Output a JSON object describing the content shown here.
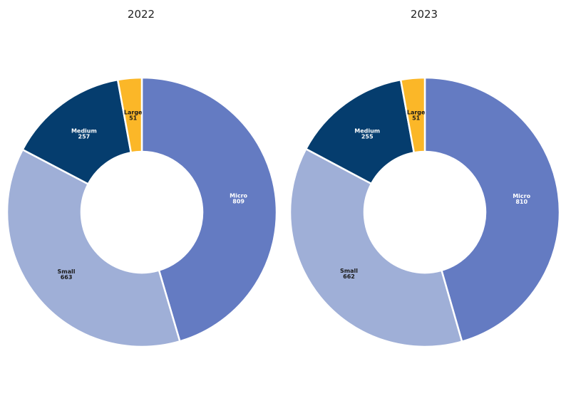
{
  "chart_data": [
    {
      "type": "pie",
      "title": "2022",
      "slices": [
        {
          "label": "Micro",
          "value": 809,
          "color": "#647bc2",
          "label_color": "#ffffff"
        },
        {
          "label": "Small",
          "value": 663,
          "color": "#9fafd7",
          "label_color": "#1a1a1a"
        },
        {
          "label": "Medium",
          "value": 257,
          "color": "#053d6e",
          "label_color": "#ffffff"
        },
        {
          "label": "Large",
          "value": 51,
          "color": "#fbb728",
          "label_color": "#1a1a1a"
        }
      ]
    },
    {
      "type": "pie",
      "title": "2023",
      "slices": [
        {
          "label": "Micro",
          "value": 810,
          "color": "#647bc2",
          "label_color": "#ffffff"
        },
        {
          "label": "Small",
          "value": 662,
          "color": "#9fafd7",
          "label_color": "#1a1a1a"
        },
        {
          "label": "Medium",
          "value": 255,
          "color": "#053d6e",
          "label_color": "#ffffff"
        },
        {
          "label": "Large",
          "value": 51,
          "color": "#fbb728",
          "label_color": "#1a1a1a"
        }
      ]
    }
  ]
}
